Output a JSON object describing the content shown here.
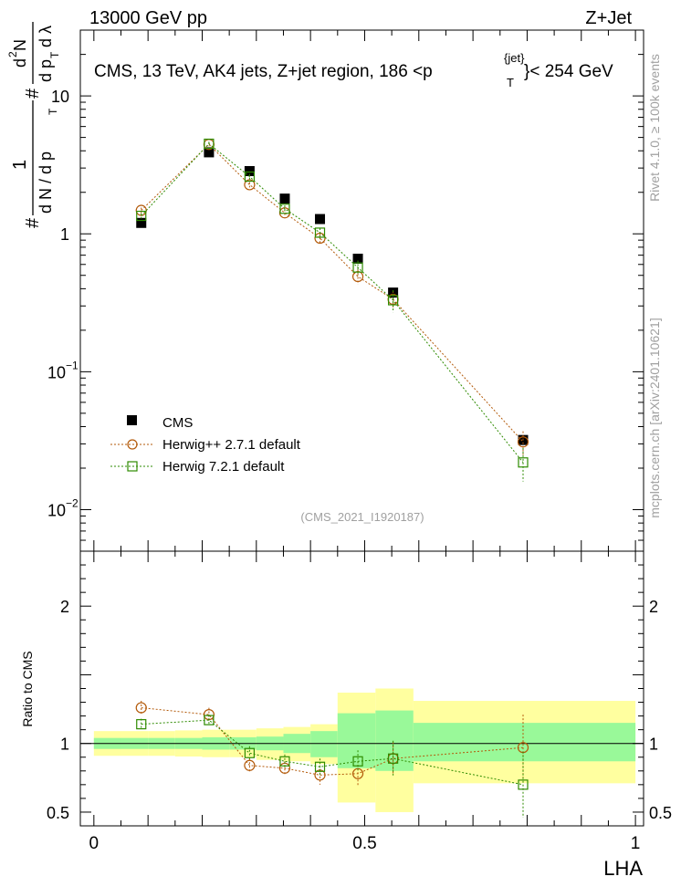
{
  "header": {
    "energy_label": "13000 GeV pp",
    "process_label": "Z+Jet"
  },
  "side_labels": {
    "rivet": "Rivet 4.1.0, ≥ 100k events",
    "mcplots": "mcplots.cern.ch [arXiv:2401.10621]"
  },
  "chart_data": [
    {
      "type": "scatter",
      "title_parts": {
        "main": "CMS, 13 TeV, AK4 jets, Z+jet region, 186 <p",
        "superscript": "{jet}",
        "subscript": "T",
        "tail": "}< 254 GeV"
      },
      "analysis_id": "(CMS_2021_I1920187)",
      "ylabel_parts": [
        "#",
        "1",
        "d N / d p",
        "T",
        "#",
        "d",
        "2",
        "N",
        "d p",
        "T",
        "d λ"
      ],
      "yscale": "log",
      "ylim": [
        0.005,
        30
      ],
      "xlim": [
        -0.025,
        1.015
      ],
      "y_ticks": [
        {
          "value": 0.01,
          "base": "10",
          "exp": "−2"
        },
        {
          "value": 0.1,
          "base": "10",
          "exp": "−1"
        },
        {
          "value": 1,
          "base": "1",
          "exp": ""
        },
        {
          "value": 10,
          "base": "10",
          "exp": ""
        }
      ],
      "legend_position": "middle-left",
      "series": [
        {
          "name": "CMS",
          "color": "#000000",
          "marker": "square-filled",
          "x": [
            0.0875,
            0.2125,
            0.2875,
            0.3525,
            0.4175,
            0.4875,
            0.5525,
            0.7925
          ],
          "y": [
            1.2,
            3.9,
            2.85,
            1.8,
            1.28,
            0.66,
            0.375,
            0.032
          ]
        },
        {
          "name": "Herwig++ 2.7.1 default",
          "color": "#b35a0a",
          "marker": "circle-open",
          "x": [
            0.0875,
            0.2125,
            0.2875,
            0.3525,
            0.4175,
            0.4875,
            0.5525,
            0.7925
          ],
          "y": [
            1.48,
            4.45,
            2.27,
            1.42,
            0.93,
            0.49,
            0.335,
            0.031
          ],
          "yerr": [
            0.07,
            0.15,
            0.1,
            0.08,
            0.07,
            0.06,
            0.05,
            0.006
          ]
        },
        {
          "name": "Herwig 7.2.1 default",
          "color": "#2e8b00",
          "marker": "square-open",
          "x": [
            0.0875,
            0.2125,
            0.2875,
            0.3525,
            0.4175,
            0.4875,
            0.5525,
            0.7925
          ],
          "y": [
            1.35,
            4.5,
            2.6,
            1.52,
            1.02,
            0.57,
            0.33,
            0.022
          ],
          "yerr": [
            0.06,
            0.15,
            0.12,
            0.09,
            0.08,
            0.07,
            0.06,
            0.006
          ]
        }
      ]
    },
    {
      "type": "scatter",
      "xlabel": "LHA",
      "ylabel": "Ratio to CMS",
      "ylim": [
        0.4,
        2.4
      ],
      "xlim": [
        -0.025,
        1.015
      ],
      "x_ticks": [
        0,
        0.5,
        1
      ],
      "x_tick_labels": [
        "0",
        "0.5",
        "1"
      ],
      "y_ticks": [
        0.5,
        1,
        2
      ],
      "y_tick_labels": [
        "0.5",
        "1",
        "2"
      ],
      "bands": {
        "bin_edges": [
          0.0,
          0.05,
          0.1,
          0.15,
          0.2,
          0.25,
          0.3,
          0.35,
          0.4,
          0.45,
          0.52,
          0.59,
          1.0
        ],
        "stat_lo": [
          0.96,
          0.96,
          0.96,
          0.96,
          0.955,
          0.955,
          0.95,
          0.93,
          0.9,
          0.82,
          0.8,
          0.87
        ],
        "stat_hi": [
          1.04,
          1.04,
          1.04,
          1.04,
          1.045,
          1.045,
          1.05,
          1.07,
          1.09,
          1.22,
          1.24,
          1.15
        ],
        "syst_lo": [
          0.91,
          0.91,
          0.91,
          0.905,
          0.9,
          0.9,
          0.88,
          0.87,
          0.85,
          0.57,
          0.5,
          0.71
        ],
        "syst_hi": [
          1.09,
          1.09,
          1.09,
          1.095,
          1.1,
          1.1,
          1.11,
          1.12,
          1.14,
          1.37,
          1.4,
          1.31
        ],
        "stat_color": "#99f999",
        "syst_color": "#ffff9f"
      },
      "series": [
        {
          "name": "Herwig++ 2.7.1 default",
          "color": "#b35a0a",
          "marker": "circle-open",
          "x": [
            0.0875,
            0.2125,
            0.2875,
            0.3525,
            0.4175,
            0.4875,
            0.5525,
            0.7925
          ],
          "y": [
            1.26,
            1.21,
            0.84,
            0.82,
            0.77,
            0.78,
            0.89,
            0.97
          ],
          "yerr": [
            0.05,
            0.05,
            0.05,
            0.05,
            0.07,
            0.09,
            0.12,
            0.24
          ]
        },
        {
          "name": "Herwig 7.2.1 default",
          "color": "#2e8b00",
          "marker": "square-open",
          "x": [
            0.0875,
            0.2125,
            0.2875,
            0.3525,
            0.4175,
            0.4875,
            0.5525,
            0.7925
          ],
          "y": [
            1.14,
            1.17,
            0.93,
            0.87,
            0.83,
            0.87,
            0.89,
            0.7
          ],
          "yerr": [
            0.04,
            0.04,
            0.05,
            0.05,
            0.06,
            0.08,
            0.13,
            0.24
          ]
        }
      ]
    }
  ]
}
